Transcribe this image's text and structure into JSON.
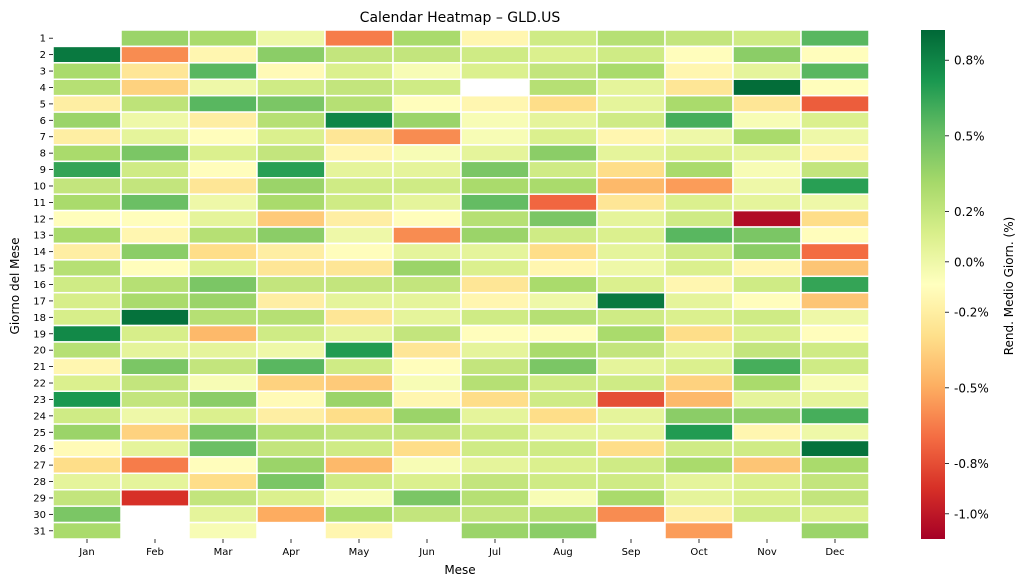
{
  "chart_data": {
    "type": "heatmap",
    "title": "Calendar Heatmap – GLD.US",
    "xlabel": "Mese",
    "ylabel": "Giorno del Mese",
    "colorbar_label": "Rend. Medio Giorn. (%)",
    "x_categories": [
      "Jan",
      "Feb",
      "Mar",
      "Apr",
      "May",
      "Jun",
      "Jul",
      "Aug",
      "Sep",
      "Oct",
      "Nov",
      "Dec"
    ],
    "y_categories": [
      "1",
      "2",
      "3",
      "4",
      "5",
      "6",
      "7",
      "8",
      "9",
      "10",
      "11",
      "12",
      "13",
      "14",
      "15",
      "16",
      "17",
      "18",
      "19",
      "20",
      "21",
      "22",
      "23",
      "24",
      "25",
      "26",
      "27",
      "28",
      "29",
      "30",
      "31"
    ],
    "vmin": -1.1,
    "vmax": 0.92,
    "colorbar_ticks": [
      {
        "value": 0.8,
        "label": "0.8%"
      },
      {
        "value": 0.5,
        "label": "0.5%"
      },
      {
        "value": 0.2,
        "label": "0.2%"
      },
      {
        "value": 0.0,
        "label": "0.0%"
      },
      {
        "value": -0.2,
        "label": "-0.2%"
      },
      {
        "value": -0.5,
        "label": "-0.5%"
      },
      {
        "value": -0.8,
        "label": "-0.8%"
      },
      {
        "value": -1.0,
        "label": "-1.0%"
      }
    ],
    "colormap": "RdYlGn",
    "values_by_month": [
      [
        null,
        0.85,
        0.3,
        0.25,
        -0.2,
        0.35,
        -0.2,
        0.3,
        0.65,
        0.2,
        0.3,
        -0.1,
        0.3,
        -0.2,
        0.25,
        0.15,
        0.12,
        0.12,
        0.78,
        0.25,
        -0.15,
        0.1,
        0.72,
        0.15,
        0.35,
        -0.12,
        -0.3,
        0.05,
        0.2,
        0.45,
        0.3
      ],
      [
        0.35,
        -0.6,
        -0.25,
        -0.35,
        0.22,
        0.0,
        0.05,
        0.45,
        0.15,
        0.2,
        0.5,
        -0.1,
        -0.15,
        0.4,
        -0.1,
        0.25,
        0.3,
        0.88,
        0.12,
        0.05,
        0.45,
        0.2,
        0.2,
        0.0,
        -0.35,
        0.05,
        -0.65,
        0.05,
        -0.9,
        null,
        null
      ],
      [
        0.3,
        -0.15,
        0.55,
        0.0,
        0.55,
        -0.2,
        -0.1,
        0.1,
        -0.1,
        -0.25,
        0.0,
        0.05,
        0.25,
        -0.3,
        0.1,
        0.45,
        0.35,
        0.25,
        -0.45,
        0.05,
        0.2,
        -0.05,
        0.4,
        0.1,
        0.45,
        0.5,
        -0.1,
        -0.3,
        0.2,
        0.05,
        -0.05
      ],
      [
        0.0,
        0.4,
        -0.12,
        0.15,
        0.45,
        0.25,
        0.1,
        0.2,
        0.68,
        0.35,
        0.3,
        -0.38,
        0.4,
        -0.2,
        -0.25,
        0.2,
        -0.2,
        0.25,
        0.15,
        0.0,
        0.55,
        -0.35,
        -0.12,
        -0.2,
        0.25,
        0.2,
        0.35,
        0.45,
        0.1,
        -0.5,
        null
      ],
      [
        -0.65,
        0.2,
        0.1,
        0.2,
        0.25,
        0.8,
        -0.25,
        -0.15,
        0.05,
        0.15,
        0.15,
        -0.2,
        0.0,
        -0.1,
        -0.25,
        0.2,
        0.05,
        -0.25,
        0.05,
        0.7,
        0.15,
        -0.38,
        0.35,
        -0.3,
        0.2,
        0.15,
        -0.45,
        0.15,
        -0.05,
        0.3,
        -0.15
      ],
      [
        0.3,
        0.2,
        -0.05,
        0.15,
        -0.1,
        0.35,
        -0.6,
        -0.05,
        0.05,
        0.15,
        0.05,
        -0.1,
        -0.6,
        0.05,
        0.35,
        0.2,
        0.05,
        0.05,
        0.2,
        -0.25,
        -0.1,
        -0.05,
        -0.15,
        0.35,
        0.2,
        -0.3,
        -0.05,
        0.1,
        0.45,
        0.2,
        null
      ],
      [
        -0.15,
        0.15,
        0.1,
        null,
        -0.15,
        -0.05,
        -0.05,
        0.05,
        0.45,
        0.3,
        0.52,
        0.25,
        0.35,
        0.05,
        0.1,
        -0.25,
        -0.15,
        0.15,
        -0.1,
        0.05,
        0.2,
        0.25,
        -0.3,
        0.05,
        0.15,
        0.15,
        0.05,
        0.2,
        0.25,
        0.2,
        0.35
      ],
      [
        0.15,
        0.1,
        0.2,
        0.25,
        -0.3,
        0.05,
        0.1,
        0.4,
        0.15,
        0.3,
        -0.72,
        0.45,
        0.15,
        -0.3,
        -0.15,
        0.3,
        0.0,
        0.25,
        -0.1,
        0.3,
        0.45,
        0.15,
        0.15,
        -0.3,
        0.05,
        0.15,
        0.1,
        0.15,
        -0.05,
        0.25,
        0.4
      ],
      [
        0.25,
        0.15,
        0.3,
        0.05,
        0.05,
        0.15,
        -0.15,
        0.05,
        -0.3,
        -0.45,
        -0.25,
        0.05,
        0.1,
        0.05,
        0.0,
        0.1,
        0.85,
        0.15,
        0.3,
        0.2,
        0.05,
        0.15,
        -0.8,
        0.05,
        0.05,
        -0.3,
        0.15,
        0.15,
        0.3,
        -0.6,
        null
      ],
      [
        0.2,
        -0.1,
        -0.15,
        -0.25,
        0.3,
        0.6,
        0.0,
        0.1,
        0.3,
        -0.55,
        0.1,
        0.15,
        0.55,
        0.15,
        0.1,
        -0.15,
        0.05,
        0.1,
        -0.3,
        0.05,
        0.1,
        -0.35,
        -0.45,
        0.4,
        0.7,
        0.15,
        0.3,
        0.05,
        0.05,
        -0.2,
        -0.55
      ],
      [
        0.15,
        0.4,
        0.05,
        0.9,
        -0.25,
        -0.05,
        0.3,
        0.05,
        -0.05,
        0.0,
        0.05,
        -1.05,
        0.45,
        0.4,
        -0.15,
        0.15,
        -0.1,
        0.15,
        0.1,
        0.2,
        0.6,
        0.3,
        0.05,
        0.4,
        -0.15,
        0.15,
        -0.4,
        0.1,
        0.1,
        0.15,
        null
      ],
      [
        0.55,
        -0.1,
        0.55,
        -0.1,
        -0.75,
        0.1,
        0.0,
        -0.15,
        0.2,
        0.68,
        0.0,
        -0.3,
        -0.1,
        -0.7,
        -0.4,
        0.65,
        -0.4,
        0.0,
        -0.1,
        0.15,
        0.15,
        -0.05,
        0.05,
        0.6,
        0.0,
        0.88,
        0.3,
        0.2,
        0.2,
        0.1,
        0.35
      ]
    ]
  }
}
